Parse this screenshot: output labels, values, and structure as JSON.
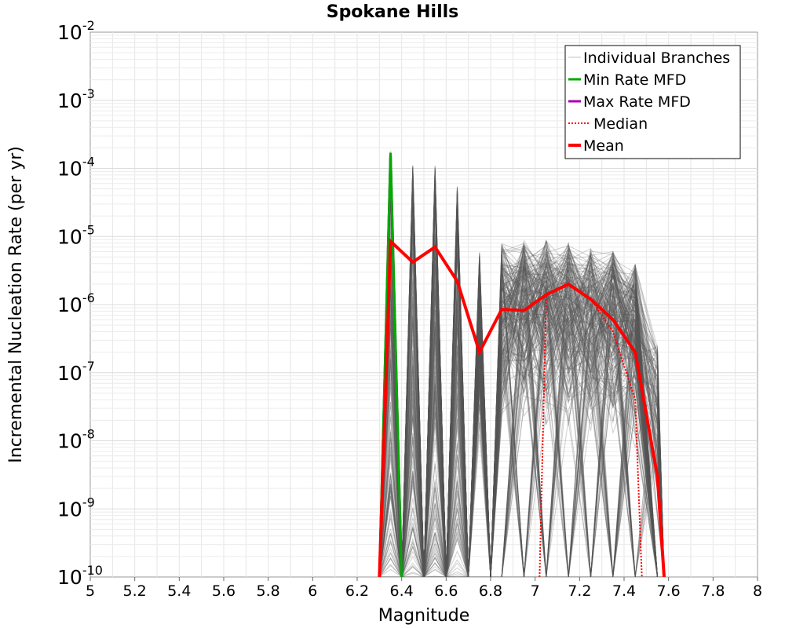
{
  "chart_data": {
    "type": "line",
    "title": "Spokane Hills",
    "xlabel": "Magnitude",
    "ylabel": "Incremental Nucleation Rate (per yr)",
    "xlim": [
      5,
      8
    ],
    "ylim": [
      1e-10,
      0.01
    ],
    "yscale": "log",
    "grid": true,
    "legend_position": "top-right",
    "x_ticks": [
      "5",
      "5.2",
      "5.4",
      "5.6",
      "5.8",
      "6",
      "6.2",
      "6.4",
      "6.6",
      "6.8",
      "7",
      "7.2",
      "7.4",
      "7.6",
      "7.8",
      "8"
    ],
    "y_ticks": [
      {
        "base": "10",
        "exp": "-2",
        "value": 0.01
      },
      {
        "base": "10",
        "exp": "-3",
        "value": 0.001
      },
      {
        "base": "10",
        "exp": "-4",
        "value": 0.0001
      },
      {
        "base": "10",
        "exp": "-5",
        "value": 1e-05
      },
      {
        "base": "10",
        "exp": "-6",
        "value": 1e-06
      },
      {
        "base": "10",
        "exp": "-7",
        "value": 1e-07
      },
      {
        "base": "10",
        "exp": "-8",
        "value": 1e-08
      },
      {
        "base": "10",
        "exp": "-9",
        "value": 1e-09
      },
      {
        "base": "10",
        "exp": "-10",
        "value": 1e-10
      }
    ],
    "series": [
      {
        "name": "Individual Branches",
        "color": "#555555",
        "style": "thin-translucent",
        "x": [
          6.35,
          6.45,
          6.55,
          6.65,
          6.75,
          6.85,
          6.95,
          7.05,
          7.15,
          7.25,
          7.35,
          7.45,
          7.55
        ],
        "upper": [
          0.00018,
          0.00012,
          0.00011,
          5.5e-05,
          6e-06,
          8e-06,
          9e-06,
          9e-06,
          8e-06,
          7e-06,
          6e-06,
          4e-06,
          2.5e-07
        ]
      },
      {
        "name": "Min Rate MFD",
        "color": "#00aa00",
        "x": [
          6.3,
          6.35,
          6.4
        ],
        "y": [
          1e-10,
          0.00017,
          1e-10
        ]
      },
      {
        "name": "Max Rate MFD",
        "color": "#aa00aa",
        "x": [
          6.3,
          6.35,
          6.4
        ],
        "y": [
          1e-10,
          0.00017,
          1e-10
        ]
      },
      {
        "name": "Median",
        "color": "#ff0000",
        "style": "dotted",
        "x": [
          7.02,
          7.05,
          7.15,
          7.25,
          7.35,
          7.45,
          7.48
        ],
        "y": [
          1e-10,
          1.4e-06,
          1.9e-06,
          1.2e-06,
          4e-07,
          4e-08,
          1e-10
        ]
      },
      {
        "name": "Mean",
        "color": "#ff0000",
        "style": "thick",
        "x": [
          6.3,
          6.35,
          6.45,
          6.55,
          6.65,
          6.75,
          6.85,
          6.95,
          7.05,
          7.15,
          7.25,
          7.35,
          7.45,
          7.55,
          7.58
        ],
        "y": [
          1e-10,
          8.5e-06,
          4.2e-06,
          7e-06,
          2.2e-06,
          2e-07,
          8.5e-07,
          8.2e-07,
          1.4e-06,
          2e-06,
          1.2e-06,
          6e-07,
          2e-07,
          3e-09,
          1e-10
        ]
      }
    ]
  }
}
